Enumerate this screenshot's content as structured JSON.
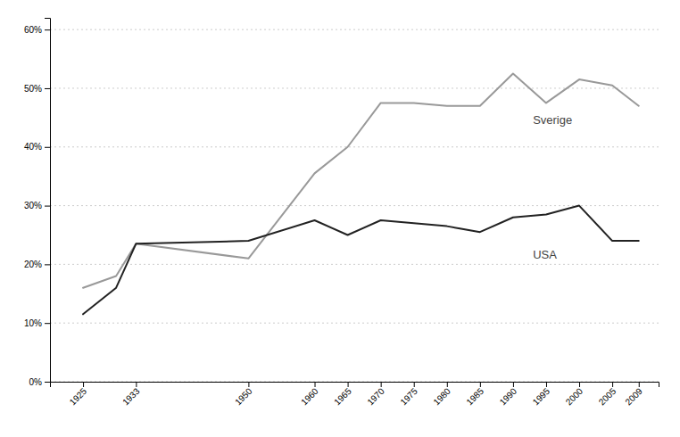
{
  "chart_data": {
    "type": "line",
    "x": [
      1925,
      1930,
      1933,
      1950,
      1960,
      1965,
      1970,
      1975,
      1980,
      1985,
      1990,
      1995,
      2000,
      2005,
      2009
    ],
    "series": [
      {
        "color": "#999999",
        "values": [
          0.16,
          0.18,
          0.235,
          0.21,
          0.355,
          0.4,
          0.475,
          0.475,
          0.47,
          0.47,
          0.525,
          0.475,
          0.515,
          0.505,
          0.47
        ]
      },
      {
        "color": "#222222",
        "values": [
          0.115,
          0.16,
          0.235,
          0.24,
          0.275,
          0.25,
          0.275,
          0.27,
          0.265,
          0.255,
          0.28,
          0.285,
          0.3,
          0.24,
          0.24
        ]
      }
    ],
    "annotations": [
      {
        "text": "Sverige",
        "x": 1993,
        "y": 0.445
      },
      {
        "text": "USA",
        "x": 1993,
        "y": 0.215
      }
    ],
    "xlim": [
      1920,
      2012
    ],
    "xticks": [
      1925,
      1933,
      1950,
      1960,
      1965,
      1970,
      1975,
      1980,
      1985,
      1990,
      1995,
      2000,
      2005,
      2009
    ],
    "ylim": [
      0.0,
      0.62
    ],
    "yticks": [
      {
        "value": 0.0,
        "label": "0%"
      },
      {
        "value": 0.1,
        "label": "10%"
      },
      {
        "value": 0.2,
        "label": "20%"
      },
      {
        "value": 0.3,
        "label": "30%"
      },
      {
        "value": 0.4,
        "label": "40%"
      },
      {
        "value": 0.5,
        "label": "50%"
      },
      {
        "value": 0.6,
        "label": "60%"
      }
    ],
    "grid": true
  }
}
